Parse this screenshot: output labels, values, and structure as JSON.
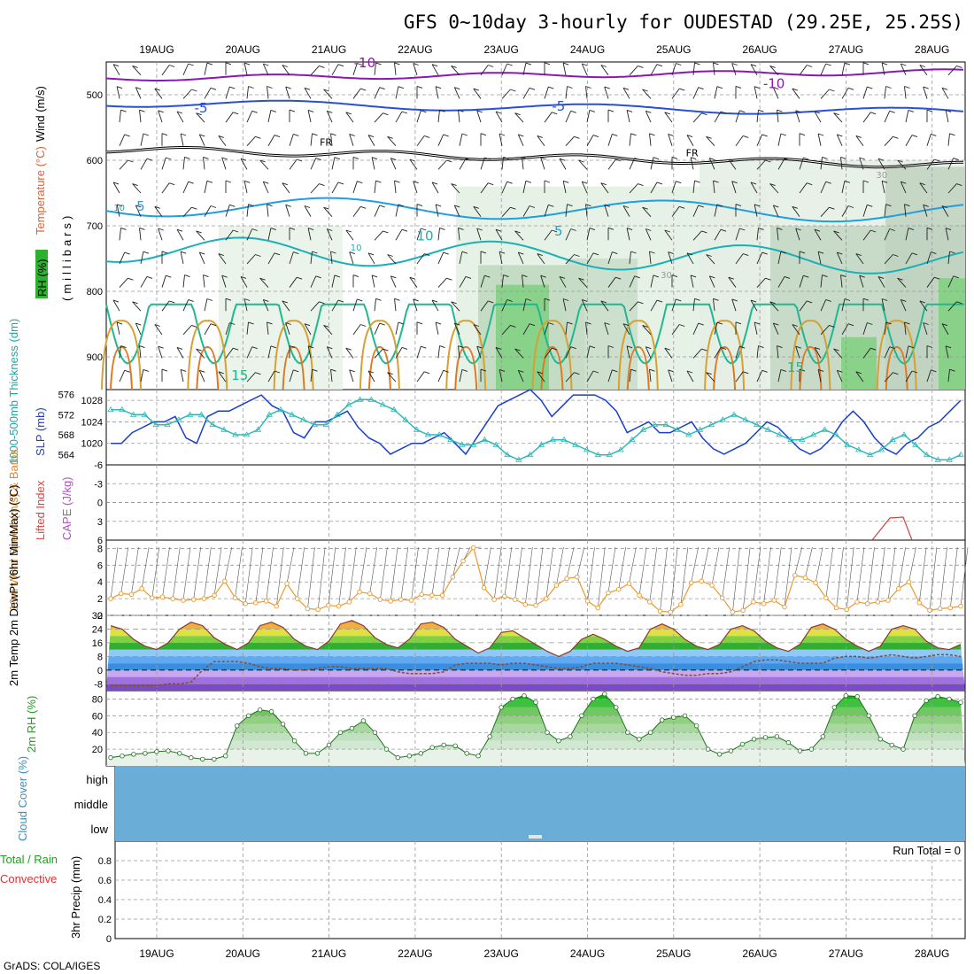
{
  "title": "GFS 0~10day 3-hourly for OUDESTAD (29.25E, 25.25S)",
  "footer": "GrADS: COLA/IGES",
  "dates": [
    "19AUG",
    "20AUG",
    "21AUG",
    "22AUG",
    "23AUG",
    "24AUG",
    "25AUG",
    "26AUG",
    "27AUG",
    "28AUG"
  ],
  "colors": {
    "temp_neg10": "#8b18b0",
    "temp_neg5": "#2a4fd0",
    "temp_5": "#1f9ee0",
    "temp_10": "#1bb0b8",
    "temp_15": "#20b890",
    "temp_20": "#d8a030",
    "temp_25": "#e07820",
    "freezing": "#000000",
    "slp": "#1a3fcc",
    "thickness": "#30b8b8",
    "cape_zero": "#e05050",
    "wind10m": "#e89a30",
    "dewpoint": "#8a4a30",
    "rh2m": "#3cb03c",
    "cloud": "#6aaed8"
  },
  "chart_data": [
    {
      "type": "contour",
      "name": "upper-air",
      "ylabel_wind": "Wind (m/s)",
      "ylabel_temp": "Temperature (°C)",
      "ylabel_rh": "RH (%)",
      "ylabel_unit": "(millibars)",
      "y_ticks": [
        500,
        600,
        700,
        800,
        900
      ],
      "ylim": [
        950,
        450
      ],
      "contour_labels": [
        {
          "text": "-10",
          "day": 3.0,
          "p": 458
        },
        {
          "text": "-10",
          "day": 7.75,
          "p": 490
        },
        {
          "text": "-5",
          "day": 1.1,
          "p": 527
        },
        {
          "text": "-5",
          "day": 5.25,
          "p": 524
        },
        {
          "text": "FR",
          "day": 2.55,
          "p": 578
        },
        {
          "text": "FR",
          "day": 6.8,
          "p": 594
        },
        {
          "text": "5",
          "day": 0.4,
          "p": 677
        },
        {
          "text": "5",
          "day": 5.25,
          "p": 715
        },
        {
          "text": "10",
          "day": 3.7,
          "p": 722
        },
        {
          "text": "15",
          "day": 1.55,
          "p": 935
        },
        {
          "text": "15",
          "day": 8.0,
          "p": 923
        },
        {
          "text": "10",
          "day": 0.15,
          "p": 677
        },
        {
          "text": "10",
          "day": 2.9,
          "p": 738
        },
        {
          "text": "30",
          "day": 6.5,
          "p": 780
        },
        {
          "text": "30",
          "day": 9.0,
          "p": 627
        }
      ]
    },
    {
      "type": "line",
      "name": "slp-thickness",
      "ylabel_left": "1000-500mb Thickness (dm)",
      "ylabel_right": "SLP (mb)",
      "y_ticks_thickness": [
        564,
        568,
        572,
        576
      ],
      "y_ticks_slp": [
        1020,
        1024,
        1028
      ],
      "series": [
        {
          "name": "SLP",
          "values": [
            1020,
            1020,
            1022,
            1023,
            1024,
            1024,
            1025,
            1021,
            1020,
            1025,
            1026,
            1026,
            1027,
            1028,
            1029,
            1027,
            1026,
            1022,
            1021,
            1024,
            1024,
            1025,
            1026,
            1023,
            1021,
            1020,
            1018,
            1019,
            1020,
            1020,
            1021,
            1022,
            1020,
            1018,
            1021,
            1024,
            1027,
            1028,
            1029,
            1030,
            1028,
            1025,
            1027,
            1029,
            1029,
            1029,
            1028,
            1026,
            1022,
            1023,
            1024,
            1022,
            1022,
            1023,
            1024,
            1021,
            1019,
            1018,
            1019,
            1020,
            1022,
            1024,
            1023,
            1021,
            1019,
            1018,
            1019,
            1021,
            1024,
            1026,
            1024,
            1021,
            1019,
            1018,
            1020,
            1021,
            1023,
            1024,
            1026,
            1028
          ]
        },
        {
          "name": "Thickness",
          "values": [
            573,
            573,
            572,
            572,
            570,
            570,
            571,
            572,
            572,
            570,
            569,
            568,
            568,
            569,
            572,
            573,
            572,
            571,
            570,
            570,
            572,
            574,
            575,
            575,
            574,
            573,
            571,
            569,
            568,
            568,
            567,
            566,
            566,
            567,
            566,
            564,
            563,
            564,
            566,
            567,
            567,
            566,
            565,
            564,
            564,
            565,
            567,
            569,
            570,
            570,
            569,
            568,
            569,
            570,
            571,
            572,
            571,
            570,
            569,
            568,
            567,
            567,
            568,
            569,
            568,
            566,
            565,
            564,
            565,
            567,
            568,
            566,
            564,
            563,
            563,
            564
          ]
        }
      ]
    },
    {
      "type": "line",
      "name": "cape-li",
      "ylabel_left": "Lifted Index",
      "ylabel_right": "CAPE (J/kg)",
      "y_ticks": [
        -6,
        -3,
        0,
        3,
        6
      ],
      "ylim": [
        -6,
        6
      ]
    },
    {
      "type": "line",
      "name": "wind10m",
      "ylabel": "10m Wind Speed (m/s) & Barbs",
      "y_ticks": [
        0,
        2,
        4,
        6,
        8
      ],
      "ylim": [
        0,
        9
      ],
      "series": [
        {
          "name": "Speed",
          "values": [
            2.0,
            2.6,
            2.5,
            3.2,
            2.1,
            2.2,
            2.0,
            1.8,
            1.9,
            2.0,
            2.4,
            4.1,
            2.1,
            1.4,
            1.5,
            1.7,
            1.1,
            3.8,
            2.0,
            0.8,
            0.7,
            1.2,
            1.1,
            1.6,
            2.8,
            2.6,
            1.9,
            1.7,
            1.9,
            1.8,
            2.5,
            2.4,
            2.4,
            4.6,
            6.5,
            8.1,
            3.3,
            1.9,
            2.3,
            1.9,
            1.3,
            1.2,
            2.0,
            3.6,
            4.4,
            4.6,
            1.7,
            0.9,
            2.7,
            3.1,
            3.8,
            2.4,
            1.6,
            0.5,
            0.4,
            1.3,
            3.9,
            4.1,
            3.6,
            2.1,
            0.4,
            0.6,
            1.6,
            1.4,
            1.8,
            1.0,
            4.8,
            4.5,
            3.9,
            2.1,
            0.9,
            0.7,
            1.6,
            1.4,
            1.6,
            1.8,
            3.2,
            4.0,
            1.5,
            0.6,
            0.8,
            0.9,
            1.1
          ]
        }
      ]
    },
    {
      "type": "line",
      "name": "temp2m",
      "ylabel": "2m Temp 2m DewPt (6hr Min/Max) (°C)",
      "y_ticks": [
        -8,
        0,
        8,
        16,
        24,
        32
      ],
      "ylim": [
        -12,
        32
      ],
      "series": [
        {
          "name": "Temp",
          "values": [
            26,
            24,
            18,
            14,
            12,
            16,
            24,
            28,
            26,
            19,
            15,
            12,
            16,
            26,
            28,
            25,
            18,
            14,
            12,
            17,
            27,
            29,
            26,
            19,
            15,
            13,
            18,
            27,
            28,
            25,
            18,
            14,
            10,
            13,
            22,
            23,
            19,
            15,
            11,
            8,
            11,
            18,
            21,
            18,
            14,
            11,
            13,
            24,
            27,
            24,
            18,
            14,
            12,
            15,
            24,
            26,
            23,
            17,
            13,
            11,
            15,
            25,
            27,
            24,
            18,
            14,
            11,
            14,
            24,
            26,
            24,
            17,
            13,
            12,
            15
          ]
        },
        {
          "name": "DewPt",
          "values": [
            -9,
            -9,
            -9,
            -9,
            -9,
            -8,
            -8,
            -7,
            0,
            5,
            5,
            5,
            4,
            2,
            1,
            1,
            0,
            0,
            1,
            2,
            2,
            1,
            1,
            1,
            1,
            -1,
            -2,
            -2,
            -2,
            -1,
            3,
            4,
            4,
            4,
            3,
            4,
            4,
            3,
            2,
            1,
            1,
            2,
            4,
            4,
            4,
            3,
            2,
            1,
            -1,
            -2,
            -3,
            -3,
            -2,
            -2,
            -1,
            2,
            5,
            6,
            6,
            5,
            4,
            4,
            4,
            7,
            8,
            8,
            7,
            8,
            9,
            8,
            7,
            8,
            9,
            9,
            8
          ]
        }
      ]
    },
    {
      "type": "area",
      "name": "rh2m",
      "ylabel": "2m RH (%)",
      "y_ticks": [
        20,
        40,
        60,
        80
      ],
      "ylim": [
        0,
        90
      ],
      "series": [
        {
          "name": "RH",
          "values": [
            10,
            12,
            14,
            15,
            17,
            18,
            15,
            10,
            8,
            8,
            12,
            48,
            60,
            67,
            65,
            50,
            30,
            15,
            15,
            25,
            40,
            45,
            54,
            40,
            20,
            10,
            12,
            15,
            22,
            25,
            24,
            15,
            12,
            35,
            70,
            80,
            84,
            76,
            40,
            30,
            35,
            60,
            80,
            86,
            70,
            40,
            32,
            40,
            55,
            58,
            60,
            48,
            20,
            14,
            18,
            26,
            32,
            34,
            35,
            28,
            18,
            20,
            35,
            70,
            84,
            83,
            60,
            32,
            25,
            20,
            60,
            78,
            83,
            80,
            76
          ]
        }
      ]
    },
    {
      "type": "table",
      "name": "cloud-cover",
      "ylabel": "Cloud Cover (%)",
      "levels": [
        "high",
        "middle",
        "low"
      ]
    },
    {
      "type": "bar",
      "name": "precip",
      "ylabel_left": "Total / Rain",
      "ylabel_left2": "Convective",
      "ylabel": "3hr Precip (mm)",
      "y_ticks": [
        0,
        0.2,
        0.4,
        0.6,
        0.8
      ],
      "ylim": [
        0,
        1.0
      ],
      "annotation": "Run Total = 0"
    }
  ]
}
